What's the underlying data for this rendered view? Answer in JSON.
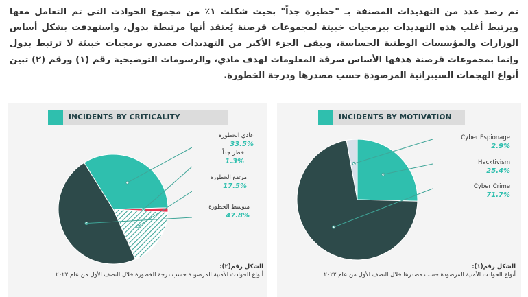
{
  "paragraph": "تم رصد عدد من التهديدات المصنفة بـ \"خطيرة جداً\" بحيث شكلت ١٪ من مجموع الحوادث التي تم التعامل معها ويرتبط أغلب هذه التهديدات ببرمجيات خبيثة لمجموعات قرصنة يُعتقد أنها مرتبطة بدول، واستهدفت بشكل أساس الوزارات والمؤسسات الوطنية الحساسة، ويبقى الجزء الأكبر من التهديدات مصدره برمجيات خبيثة لا ترتبط بدول وإنما بمجموعات قرصنة هدفها الأساس سرقة المعلومات لهدف مادي، والرسومات التوضيحية رقم (١) ورقم (٢) تبين أنواع الهجمات السيبرانية المرصودة حسب مصدرها ودرجة الخطورة.",
  "colors": {
    "teal": "#2fbfae",
    "dark": "#2d4a4a",
    "red": "#e8314f",
    "light": "#d8e0ea",
    "stripe": "#3fa598"
  },
  "chart_data": [
    {
      "type": "pie",
      "title": "INCIDENTS BY CRITICALITY",
      "slices": [
        {
          "label": "عادي الخطورة",
          "value": 33.5,
          "display": "33.5%"
        },
        {
          "label": "خطر جداً",
          "value": 1.3,
          "display": "1.3%"
        },
        {
          "label": "مرتفع الخطورة",
          "value": 17.5,
          "display": "17.5%"
        },
        {
          "label": "متوسط الخطورة",
          "value": 47.8,
          "display": "47.8%"
        }
      ],
      "caption_heading": "الشكل رقم(٢):",
      "caption_text": "أنواع الحوادث الأمنية المرصودة حسب درجة الخطورة خلال النصف الأول من عام ٢٠٢٢"
    },
    {
      "type": "pie",
      "title": "INCIDENTS BY MOTIVATION",
      "slices": [
        {
          "label": "Cyber Espionage",
          "value": 2.9,
          "display": "2.9%"
        },
        {
          "label": "Hacktivism",
          "value": 25.4,
          "display": "25.4%"
        },
        {
          "label": "Cyber Crime",
          "value": 71.7,
          "display": "71.7%"
        }
      ],
      "caption_heading": "الشكل رقم(١):",
      "caption_text": "أنواع الحوادث الأمنية المرصودة حسب مصدرها خلال النصف الأول من عام ٢٠٢٢"
    }
  ]
}
